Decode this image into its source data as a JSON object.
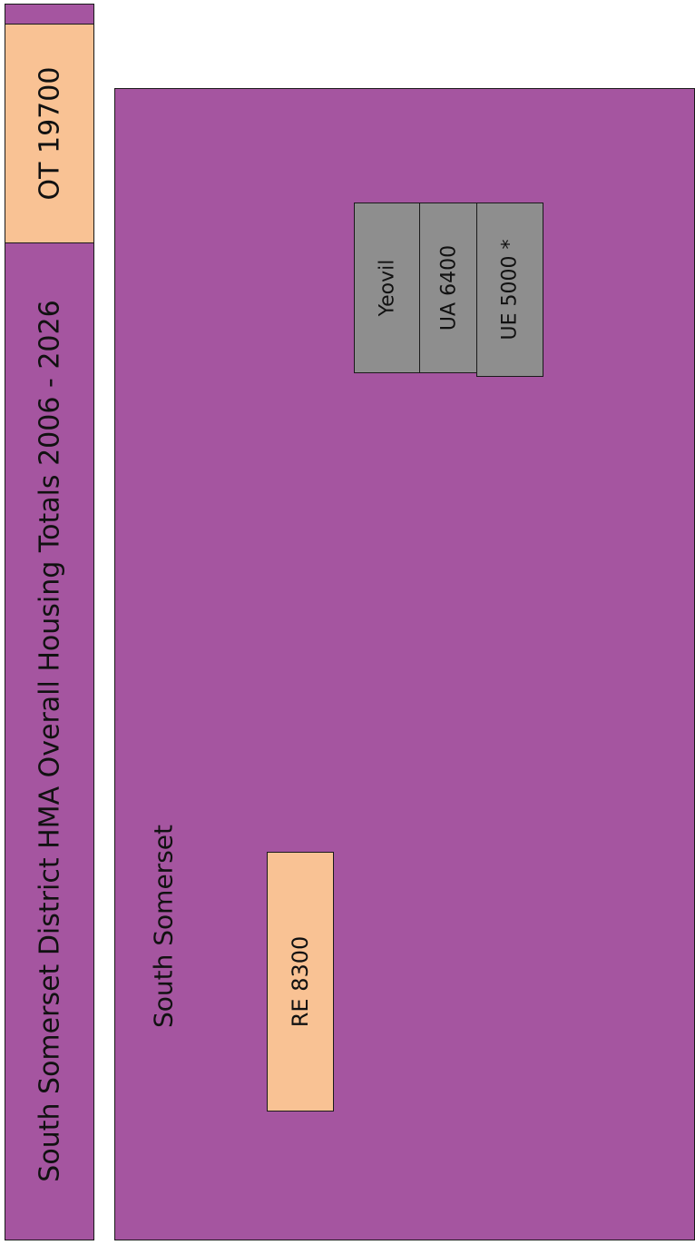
{
  "header": {
    "title": "South Somerset District HMA Overall Housing Totals 2006 - 2026",
    "overall_total": "OT 19700"
  },
  "district": {
    "name": "South Somerset",
    "rural_entry": "RE 8300"
  },
  "settlement": {
    "name": "Yeovil",
    "urban_allocation": "UA 6400",
    "urban_extension": "UE 5000 *"
  },
  "colors": {
    "district_fill": "#a555a0",
    "total_fill": "#f9c294",
    "settlement_fill": "#8e8e8e",
    "border": "#1a1a1a"
  }
}
